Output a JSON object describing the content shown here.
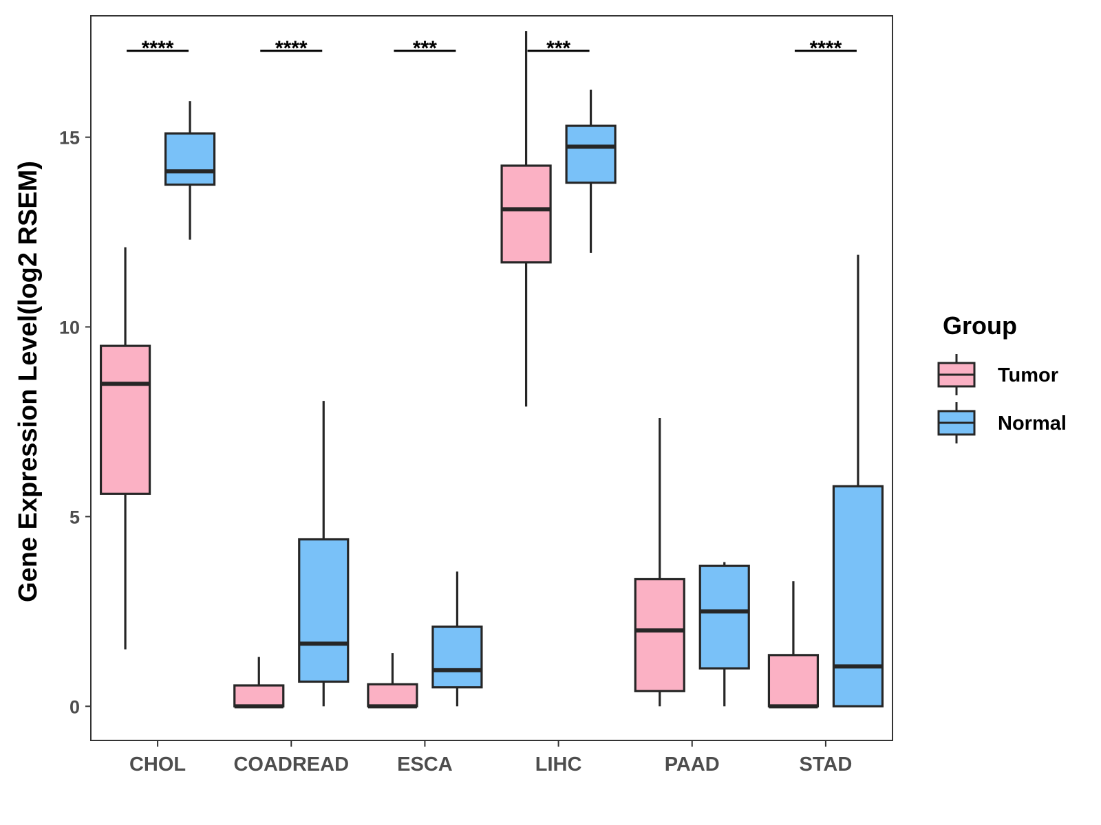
{
  "chart_data": {
    "type": "boxplot",
    "ylabel": "Gene Expression Level(log2 RSEM)",
    "xlabel": "",
    "ylim": [
      -0.9,
      18.2
    ],
    "yticks": [
      0,
      5,
      10,
      15
    ],
    "categories": [
      "CHOL",
      "COADREAD",
      "ESCA",
      "LIHC",
      "PAAD",
      "STAD"
    ],
    "legend": {
      "title": "Group",
      "position": "right",
      "entries": [
        {
          "name": "Tumor",
          "color": "#FBB1C4"
        },
        {
          "name": "Normal",
          "color": "#79C1F8"
        }
      ]
    },
    "series": [
      {
        "name": "Tumor",
        "color": "#FBB1C4",
        "boxes": [
          {
            "min": 1.5,
            "q1": 5.6,
            "median": 8.5,
            "q3": 9.5,
            "max": 12.1
          },
          {
            "min": 0.0,
            "q1": 0.0,
            "median": 0.0,
            "q3": 0.55,
            "max": 1.3
          },
          {
            "min": 0.0,
            "q1": 0.0,
            "median": 0.0,
            "q3": 0.58,
            "max": 1.4
          },
          {
            "min": 7.9,
            "q1": 11.7,
            "median": 13.1,
            "q3": 14.25,
            "max": 17.8
          },
          {
            "min": 0.0,
            "q1": 0.4,
            "median": 2.0,
            "q3": 3.35,
            "max": 7.6
          },
          {
            "min": 0.0,
            "q1": 0.0,
            "median": 0.0,
            "q3": 1.35,
            "max": 3.3
          }
        ]
      },
      {
        "name": "Normal",
        "color": "#79C1F8",
        "boxes": [
          {
            "min": 12.3,
            "q1": 13.75,
            "median": 14.1,
            "q3": 15.1,
            "max": 15.95
          },
          {
            "min": 0.0,
            "q1": 0.65,
            "median": 1.65,
            "q3": 4.4,
            "max": 8.05
          },
          {
            "min": 0.0,
            "q1": 0.5,
            "median": 0.95,
            "q3": 2.1,
            "max": 3.55
          },
          {
            "min": 11.95,
            "q1": 13.8,
            "median": 14.75,
            "q3": 15.3,
            "max": 16.25
          },
          {
            "min": 0.0,
            "q1": 1.0,
            "median": 2.5,
            "q3": 3.7,
            "max": 3.8
          },
          {
            "min": 0.0,
            "q1": 0.0,
            "median": 1.05,
            "q3": 5.8,
            "max": 11.9
          }
        ]
      }
    ],
    "annotations": [
      {
        "category": "CHOL",
        "label": "****"
      },
      {
        "category": "COADREAD",
        "label": "****"
      },
      {
        "category": "ESCA",
        "label": "***"
      },
      {
        "category": "LIHC",
        "label": "***"
      },
      {
        "category": "PAAD",
        "label": ""
      },
      {
        "category": "STAD",
        "label": "****"
      }
    ]
  }
}
